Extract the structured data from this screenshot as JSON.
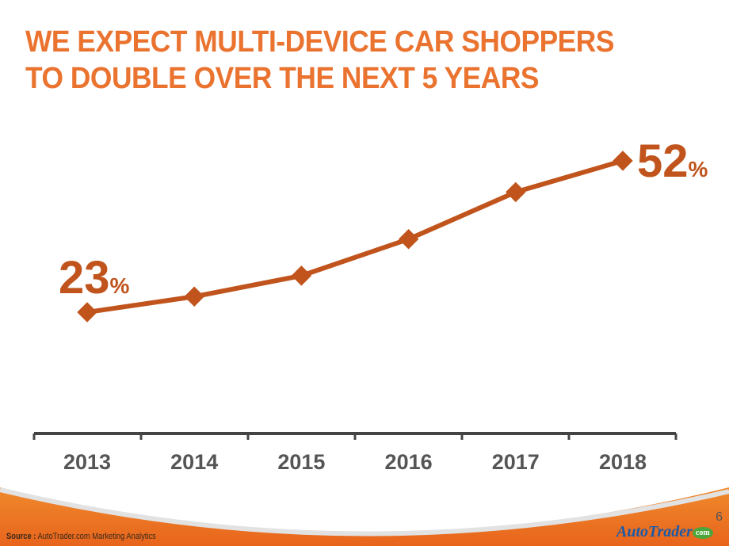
{
  "title_lines": [
    "WE EXPECT MULTI-DEVICE CAR SHOPPERS",
    "TO DOUBLE OVER THE NEXT 5 YEARS"
  ],
  "chart_data": {
    "type": "line",
    "categories": [
      "2013",
      "2014",
      "2015",
      "2016",
      "2017",
      "2018"
    ],
    "values": [
      23,
      26,
      30,
      37,
      46,
      52
    ],
    "unit": "%",
    "annotations": [
      {
        "index": 0,
        "number": "23",
        "unit": "%"
      },
      {
        "index": 5,
        "number": "52",
        "unit": "%"
      }
    ],
    "grid": false,
    "colors": {
      "line": "#c0541c",
      "title": "#ea7330",
      "axis": "#444444",
      "tick_labels": "#555555"
    }
  },
  "footer": {
    "source_label": "Source :",
    "source_text": " AutoTrader.com Marketing Analytics",
    "page_number": "6",
    "logo_text": "AutoTrader",
    "logo_badge": "com"
  }
}
